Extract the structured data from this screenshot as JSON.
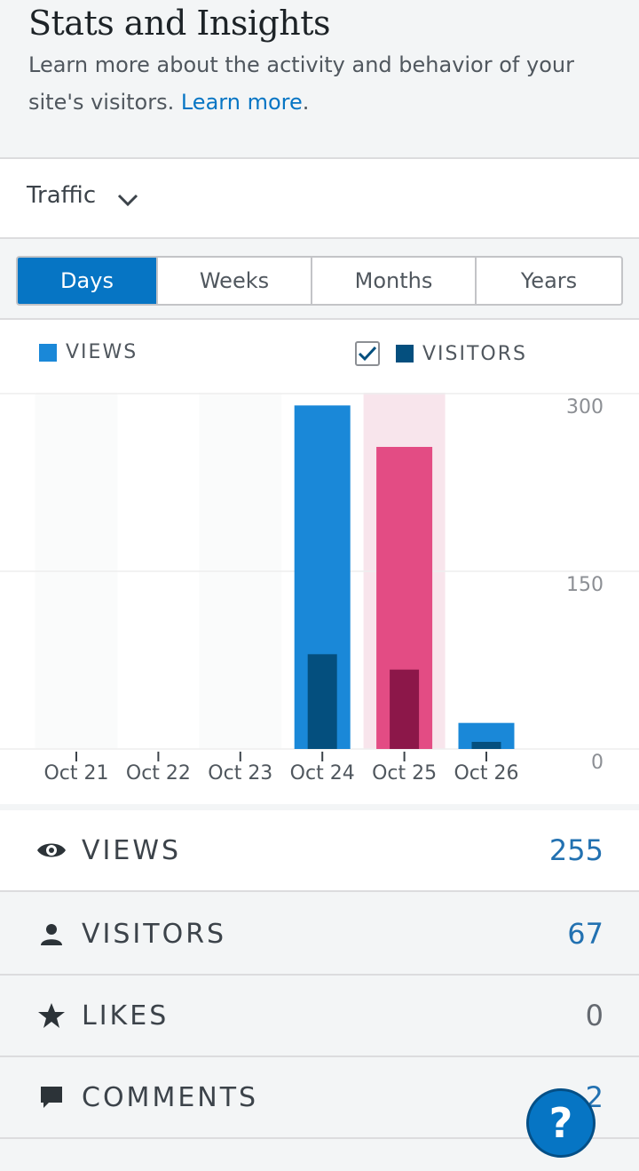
{
  "header": {
    "title": "Stats and Insights",
    "description": "Learn more about the activity and behavior of your site's visitors.",
    "learn_more": "Learn more",
    "trailing": "."
  },
  "filter": {
    "label": "Traffic"
  },
  "periods": {
    "days": "Days",
    "weeks": "Weeks",
    "months": "Months",
    "years": "Years",
    "selected": "Days"
  },
  "legend": {
    "views": "VIEWS",
    "visitors": "VISITORS",
    "visitors_checked": true
  },
  "chart_data": {
    "type": "bar",
    "categories": [
      "Oct 21",
      "Oct 22",
      "Oct 23",
      "Oct 24",
      "Oct 25",
      "Oct 26"
    ],
    "series": [
      {
        "name": "VIEWS",
        "values": [
          0,
          0,
          0,
          290,
          255,
          22
        ]
      },
      {
        "name": "VISITORS",
        "values": [
          0,
          0,
          0,
          80,
          67,
          6
        ]
      }
    ],
    "yticks": [
      "300",
      "150",
      "0"
    ],
    "ylim": [
      0,
      300
    ],
    "selected_category": "Oct 25",
    "colors": {
      "views": "#1a88d8",
      "visitors": "#044f7e",
      "selected_views": "#e34c84",
      "selected_visitors": "#8c1749",
      "selected_band": "#f8e5ec"
    }
  },
  "stats": [
    {
      "label": "VIEWS",
      "value": "255",
      "icon": "eye-icon"
    },
    {
      "label": "VISITORS",
      "value": "67",
      "icon": "person-icon"
    },
    {
      "label": "LIKES",
      "value": "0",
      "icon": "star-icon"
    },
    {
      "label": "COMMENTS",
      "value": "2",
      "icon": "comment-icon"
    }
  ],
  "help": {
    "label": "?"
  },
  "colors": {
    "accent": "#0675c4",
    "link_value": "#2271b1",
    "zero_value": "#646970"
  }
}
